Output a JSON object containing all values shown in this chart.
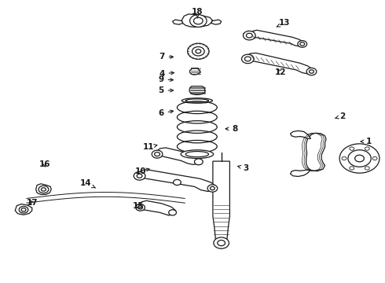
{
  "bg_color": "#ffffff",
  "line_color": "#1a1a1a",
  "figsize": [
    4.9,
    3.6
  ],
  "dpi": 100,
  "label_positions": {
    "1": [
      0.96,
      0.5,
      0.93,
      0.5
    ],
    "2": [
      0.89,
      0.59,
      0.865,
      0.58
    ],
    "3": [
      0.64,
      0.405,
      0.61,
      0.415
    ],
    "4": [
      0.42,
      0.74,
      0.46,
      0.745
    ],
    "5": [
      0.418,
      0.68,
      0.458,
      0.682
    ],
    "6": [
      0.418,
      0.6,
      0.458,
      0.61
    ],
    "7": [
      0.42,
      0.8,
      0.458,
      0.8
    ],
    "8": [
      0.61,
      0.545,
      0.578,
      0.545
    ],
    "9": [
      0.418,
      0.72,
      0.458,
      0.718
    ],
    "10": [
      0.365,
      0.395,
      0.39,
      0.403
    ],
    "11": [
      0.385,
      0.48,
      0.41,
      0.488
    ],
    "12": [
      0.73,
      0.745,
      0.715,
      0.762
    ],
    "13": [
      0.74,
      0.92,
      0.718,
      0.906
    ],
    "14": [
      0.222,
      0.352,
      0.248,
      0.335
    ],
    "15": [
      0.358,
      0.27,
      0.346,
      0.285
    ],
    "16": [
      0.115,
      0.42,
      0.118,
      0.4
    ],
    "17": [
      0.083,
      0.282,
      0.073,
      0.298
    ],
    "18": [
      0.513,
      0.96,
      0.513,
      0.938
    ]
  }
}
